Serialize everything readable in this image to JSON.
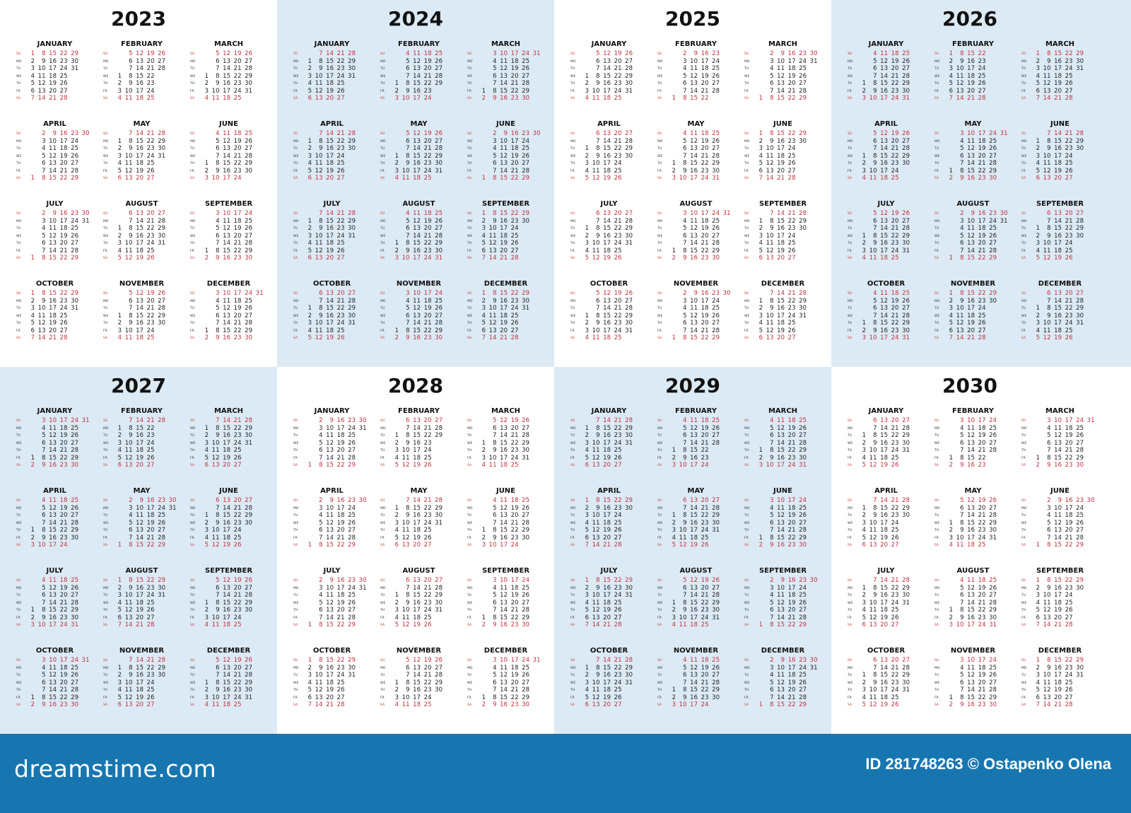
{
  "years": [
    {
      "year": "2023",
      "background": "#ffffff"
    },
    {
      "year": "2024",
      "background": "#dceaf5"
    },
    {
      "year": "2025",
      "background": "#ffffff"
    },
    {
      "year": "2026",
      "background": "#dceaf5"
    },
    {
      "year": "2027",
      "background": "#dceaf5"
    },
    {
      "year": "2028",
      "background": "#ffffff"
    },
    {
      "year": "2029",
      "background": "#dceaf5"
    },
    {
      "year": "2030",
      "background": "#ffffff"
    }
  ],
  "months": [
    "JANUARY",
    "FEBRUARY",
    "MARCH",
    "APRIL",
    "MAY",
    "JUNE",
    "JULY",
    "AUGUST",
    "SEPTEMBER",
    "OCTOBER",
    "NOVEMBER",
    "DECEMBER"
  ],
  "weekdays": [
    "SU",
    "MO",
    "TU",
    "WE",
    "TH",
    "FR",
    "SA"
  ],
  "week_start": "Sunday",
  "colors": {
    "weekend": "#c0303c",
    "weekday": "#222222",
    "footer": "#1776b0"
  },
  "footer": {
    "logo": "dreamstime.com",
    "credit": "ID 281748263 © Ostapenko Olena"
  }
}
